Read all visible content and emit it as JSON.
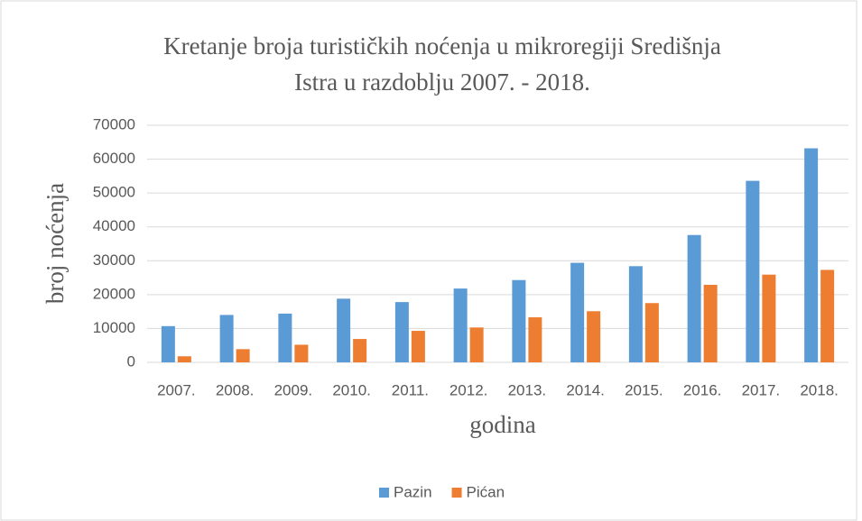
{
  "chart_data": {
    "type": "bar",
    "title": [
      "Kretanje broja turističkih  noćenja u mikroregiji  Središnja",
      "Istra u razdoblju 2007.  - 2018."
    ],
    "x_label": "godina",
    "y_label": "broj noćenja",
    "categories": [
      "2007.",
      "2008.",
      "2009.",
      "2010.",
      "2011.",
      "2012.",
      "2013.",
      "2014.",
      "2015.",
      "2016.",
      "2017.",
      "2018."
    ],
    "series": [
      {
        "name": "Pazin",
        "color": "#5b9bd5",
        "values": [
          10700,
          14000,
          14400,
          18800,
          17800,
          21800,
          24300,
          29400,
          28400,
          37600,
          53600,
          63200
        ]
      },
      {
        "name": "Pićan",
        "color": "#ed7d31",
        "values": [
          1800,
          3900,
          5200,
          6900,
          9300,
          10300,
          13300,
          15100,
          17500,
          22900,
          25900,
          27300
        ]
      }
    ],
    "ylim": [
      0,
      70000
    ],
    "yticks": [
      0,
      10000,
      20000,
      30000,
      40000,
      50000,
      60000,
      70000
    ],
    "grid": true,
    "legend": "bottom"
  }
}
